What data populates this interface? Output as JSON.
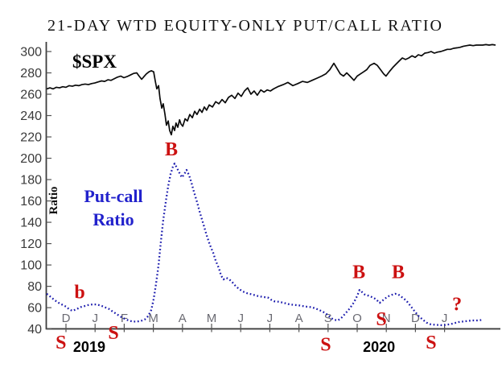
{
  "title": "21-DAY WTD EQUITY-ONLY PUT/CALL RATIO",
  "labels": {
    "spx": "$SPX",
    "putcall_line1": "Put-call",
    "putcall_line2": "Ratio",
    "y_axis": "Ratio"
  },
  "colors": {
    "spx_line": "#0a0a0a",
    "putcall_line": "#1a1aad",
    "putcall_label": "#2222cc",
    "signal_red": "#cc1111",
    "axis": "#3c3c3c",
    "tick": "#555555"
  },
  "chart_data": {
    "type": "line",
    "title": "21-DAY WTD EQUITY-ONLY PUT/CALL RATIO",
    "xlabel": "",
    "ylabel": "Ratio",
    "axis_range": [
      40,
      300
    ],
    "y_ticks": [
      300,
      280,
      260,
      240,
      220,
      200,
      180,
      160,
      140,
      120,
      100,
      80,
      60,
      40
    ],
    "x_tick_labels": [
      "D",
      "J",
      "F",
      "M",
      "A",
      "M",
      "J",
      "J",
      "A",
      "S",
      "O",
      "N",
      "D",
      "J"
    ],
    "year_labels": [
      {
        "text": "2019",
        "month_index": 0.8
      },
      {
        "text": "2020",
        "month_index": 10.75
      }
    ],
    "grid": false,
    "legend_position": "none",
    "series": [
      {
        "name": "$SPX",
        "style": "solid",
        "color": "#0a0a0a",
        "points": [
          [
            -0.66,
            265
          ],
          [
            -0.55,
            266
          ],
          [
            -0.44,
            265
          ],
          [
            -0.33,
            266.5
          ],
          [
            -0.22,
            266
          ],
          [
            -0.11,
            267
          ],
          [
            0,
            266.5
          ],
          [
            0.11,
            268
          ],
          [
            0.22,
            267.5
          ],
          [
            0.33,
            268.5
          ],
          [
            0.44,
            268
          ],
          [
            0.55,
            269
          ],
          [
            0.66,
            269.5
          ],
          [
            0.77,
            269
          ],
          [
            0.88,
            270
          ],
          [
            0.99,
            270.5
          ],
          [
            1.1,
            271.5
          ],
          [
            1.22,
            272.5
          ],
          [
            1.33,
            272
          ],
          [
            1.44,
            273.5
          ],
          [
            1.55,
            273
          ],
          [
            1.66,
            274.5
          ],
          [
            1.77,
            276
          ],
          [
            1.88,
            277
          ],
          [
            1.99,
            275.5
          ],
          [
            2.1,
            276.5
          ],
          [
            2.21,
            278
          ],
          [
            2.32,
            279.5
          ],
          [
            2.43,
            280
          ],
          [
            2.51,
            277
          ],
          [
            2.6,
            274
          ],
          [
            2.68,
            276.5
          ],
          [
            2.76,
            279
          ],
          [
            2.85,
            281
          ],
          [
            2.93,
            282
          ],
          [
            3.01,
            281
          ],
          [
            3.07,
            272
          ],
          [
            3.12,
            265
          ],
          [
            3.18,
            268
          ],
          [
            3.23,
            256
          ],
          [
            3.29,
            247
          ],
          [
            3.34,
            251
          ],
          [
            3.4,
            241
          ],
          [
            3.45,
            231
          ],
          [
            3.51,
            235
          ],
          [
            3.56,
            226
          ],
          [
            3.62,
            222
          ],
          [
            3.67,
            230
          ],
          [
            3.73,
            226
          ],
          [
            3.78,
            233
          ],
          [
            3.84,
            229
          ],
          [
            3.9,
            236
          ],
          [
            3.95,
            232
          ],
          [
            4.01,
            230
          ],
          [
            4.09,
            237
          ],
          [
            4.17,
            235
          ],
          [
            4.25,
            241
          ],
          [
            4.34,
            238
          ],
          [
            4.42,
            244
          ],
          [
            4.5,
            241
          ],
          [
            4.59,
            246
          ],
          [
            4.67,
            243
          ],
          [
            4.75,
            248
          ],
          [
            4.83,
            245
          ],
          [
            4.92,
            250
          ],
          [
            5.03,
            248
          ],
          [
            5.14,
            253
          ],
          [
            5.25,
            251
          ],
          [
            5.36,
            255
          ],
          [
            5.47,
            252
          ],
          [
            5.58,
            257
          ],
          [
            5.69,
            259
          ],
          [
            5.8,
            256
          ],
          [
            5.91,
            261
          ],
          [
            6.02,
            258
          ],
          [
            6.13,
            263
          ],
          [
            6.24,
            266
          ],
          [
            6.35,
            260
          ],
          [
            6.46,
            263
          ],
          [
            6.57,
            259
          ],
          [
            6.69,
            264
          ],
          [
            6.8,
            262
          ],
          [
            6.91,
            264
          ],
          [
            7.02,
            263
          ],
          [
            7.13,
            265
          ],
          [
            7.27,
            267
          ],
          [
            7.46,
            269
          ],
          [
            7.62,
            271
          ],
          [
            7.79,
            268
          ],
          [
            7.96,
            270
          ],
          [
            8.12,
            272
          ],
          [
            8.29,
            271
          ],
          [
            8.45,
            273
          ],
          [
            8.62,
            275
          ],
          [
            8.78,
            277
          ],
          [
            8.92,
            279
          ],
          [
            9.06,
            283
          ],
          [
            9.2,
            289
          ],
          [
            9.31,
            284
          ],
          [
            9.42,
            279
          ],
          [
            9.53,
            277
          ],
          [
            9.64,
            280
          ],
          [
            9.75,
            277
          ],
          [
            9.89,
            273
          ],
          [
            10,
            277
          ],
          [
            10.11,
            279
          ],
          [
            10.22,
            281
          ],
          [
            10.33,
            283
          ],
          [
            10.44,
            287
          ],
          [
            10.58,
            289
          ],
          [
            10.69,
            287
          ],
          [
            10.8,
            283
          ],
          [
            10.91,
            279
          ],
          [
            10.99,
            277
          ],
          [
            11.1,
            281
          ],
          [
            11.22,
            285
          ],
          [
            11.33,
            288
          ],
          [
            11.44,
            291
          ],
          [
            11.55,
            294
          ],
          [
            11.66,
            292.5
          ],
          [
            11.77,
            294
          ],
          [
            11.88,
            296
          ],
          [
            11.99,
            294.5
          ],
          [
            12.1,
            297
          ],
          [
            12.21,
            296
          ],
          [
            12.32,
            298.5
          ],
          [
            12.43,
            299
          ],
          [
            12.54,
            300
          ],
          [
            12.65,
            298.5
          ],
          [
            12.76,
            299.5
          ],
          [
            12.87,
            300
          ],
          [
            12.98,
            301
          ],
          [
            13.09,
            302
          ],
          [
            13.2,
            302
          ],
          [
            13.31,
            303
          ],
          [
            13.43,
            303.5
          ],
          [
            13.54,
            304
          ],
          [
            13.65,
            305
          ],
          [
            13.76,
            305.5
          ],
          [
            13.87,
            306
          ],
          [
            13.98,
            305.5
          ],
          [
            14.09,
            306
          ],
          [
            14.2,
            306
          ],
          [
            14.31,
            306
          ],
          [
            14.42,
            306.5
          ],
          [
            14.53,
            306
          ],
          [
            14.64,
            306.5
          ],
          [
            14.75,
            306
          ]
        ]
      },
      {
        "name": "Put-call Ratio",
        "style": "dotted",
        "color": "#1a1aad",
        "points": [
          [
            -0.66,
            73
          ],
          [
            -0.52,
            70
          ],
          [
            -0.39,
            67
          ],
          [
            -0.25,
            64.5
          ],
          [
            -0.11,
            62.5
          ],
          [
            0,
            61
          ],
          [
            0.11,
            58.5
          ],
          [
            0.22,
            57
          ],
          [
            0.36,
            58.5
          ],
          [
            0.5,
            60.5
          ],
          [
            0.64,
            61.5
          ],
          [
            0.77,
            62.5
          ],
          [
            0.91,
            63
          ],
          [
            1.05,
            63
          ],
          [
            1.19,
            62
          ],
          [
            1.33,
            60.5
          ],
          [
            1.46,
            59
          ],
          [
            1.6,
            56.5
          ],
          [
            1.74,
            54
          ],
          [
            1.88,
            51.5
          ],
          [
            2.02,
            49.5
          ],
          [
            2.15,
            48
          ],
          [
            2.29,
            47
          ],
          [
            2.43,
            47
          ],
          [
            2.57,
            47.5
          ],
          [
            2.71,
            49
          ],
          [
            2.82,
            52
          ],
          [
            2.93,
            58
          ],
          [
            3.01,
            68
          ],
          [
            3.09,
            82
          ],
          [
            3.18,
            100
          ],
          [
            3.26,
            122
          ],
          [
            3.34,
            142
          ],
          [
            3.43,
            160
          ],
          [
            3.51,
            174
          ],
          [
            3.59,
            185
          ],
          [
            3.67,
            192
          ],
          [
            3.73,
            195
          ],
          [
            3.81,
            191
          ],
          [
            3.9,
            186
          ],
          [
            3.98,
            182
          ],
          [
            4.06,
            185
          ],
          [
            4.14,
            189
          ],
          [
            4.23,
            184
          ],
          [
            4.31,
            177
          ],
          [
            4.39,
            169
          ],
          [
            4.5,
            159
          ],
          [
            4.61,
            148
          ],
          [
            4.72,
            138
          ],
          [
            4.83,
            128
          ],
          [
            4.94,
            119
          ],
          [
            5.06,
            111
          ],
          [
            5.14,
            104
          ],
          [
            5.25,
            97
          ],
          [
            5.33,
            90
          ],
          [
            5.41,
            86.5
          ],
          [
            5.5,
            88
          ],
          [
            5.58,
            87
          ],
          [
            5.69,
            84.5
          ],
          [
            5.8,
            81
          ],
          [
            5.94,
            77.5
          ],
          [
            6.08,
            75
          ],
          [
            6.22,
            73.5
          ],
          [
            6.38,
            72.5
          ],
          [
            6.57,
            71
          ],
          [
            6.77,
            70
          ],
          [
            6.93,
            69.5
          ],
          [
            7.04,
            67.5
          ],
          [
            7.15,
            66
          ],
          [
            7.32,
            65.5
          ],
          [
            7.49,
            64.5
          ],
          [
            7.68,
            63
          ],
          [
            7.87,
            62.5
          ],
          [
            8.04,
            62
          ],
          [
            8.23,
            61
          ],
          [
            8.43,
            60.5
          ],
          [
            8.59,
            59
          ],
          [
            8.76,
            57
          ],
          [
            8.9,
            55
          ],
          [
            9.01,
            52.5
          ],
          [
            9.12,
            50
          ],
          [
            9.23,
            48.5
          ],
          [
            9.34,
            48
          ],
          [
            9.48,
            51
          ],
          [
            9.61,
            55
          ],
          [
            9.75,
            59.5
          ],
          [
            9.89,
            65
          ],
          [
            10,
            71
          ],
          [
            10.08,
            76.5
          ],
          [
            10.17,
            74.5
          ],
          [
            10.25,
            72.5
          ],
          [
            10.36,
            71.5
          ],
          [
            10.5,
            70
          ],
          [
            10.64,
            68
          ],
          [
            10.77,
            64.5
          ],
          [
            10.91,
            67.5
          ],
          [
            11.05,
            70.5
          ],
          [
            11.19,
            72
          ],
          [
            11.3,
            73
          ],
          [
            11.41,
            72.5
          ],
          [
            11.55,
            69.5
          ],
          [
            11.69,
            66.5
          ],
          [
            11.82,
            62
          ],
          [
            11.96,
            57
          ],
          [
            12.1,
            52.5
          ],
          [
            12.24,
            49
          ],
          [
            12.38,
            46
          ],
          [
            12.51,
            44.5
          ],
          [
            12.65,
            44
          ],
          [
            12.79,
            43.8
          ],
          [
            12.93,
            43.5
          ],
          [
            13.07,
            44
          ],
          [
            13.2,
            44.5
          ],
          [
            13.34,
            45.5
          ],
          [
            13.48,
            46.5
          ],
          [
            13.62,
            47
          ],
          [
            13.78,
            47.5
          ],
          [
            13.95,
            48
          ],
          [
            14.12,
            48
          ],
          [
            14.28,
            48.5
          ]
        ]
      }
    ],
    "signals": [
      {
        "label": "S",
        "month_index": -0.17,
        "value": 28
      },
      {
        "label": "S",
        "month_index": 1.63,
        "value": 37
      },
      {
        "label": "b",
        "month_index": 0.47,
        "value": 75
      },
      {
        "label": "B",
        "month_index": 3.62,
        "value": 209
      },
      {
        "label": "S",
        "month_index": 8.92,
        "value": 26
      },
      {
        "label": "B",
        "month_index": 10.06,
        "value": 94
      },
      {
        "label": "S",
        "month_index": 10.83,
        "value": 50
      },
      {
        "label": "B",
        "month_index": 11.41,
        "value": 94
      },
      {
        "label": "S",
        "month_index": 12.54,
        "value": 28
      },
      {
        "label": "?",
        "month_index": 13.43,
        "value": 64
      }
    ]
  }
}
